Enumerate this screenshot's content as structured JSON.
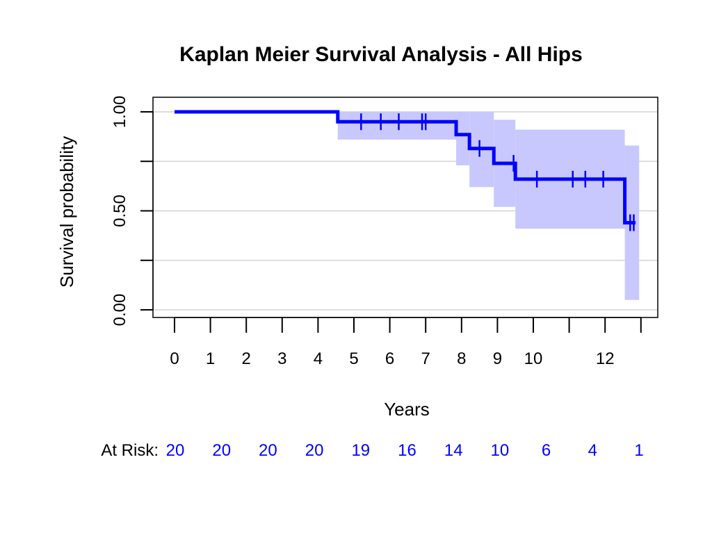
{
  "chart_data": {
    "type": "line",
    "subtype": "kaplan-meier-step",
    "title": "Kaplan Meier Survival Analysis - All Hips",
    "xlabel": "Years",
    "ylabel": "Survival probability",
    "xlim": [
      0,
      13
    ],
    "ylim": [
      0,
      1
    ],
    "x_ticks": [
      0,
      1,
      2,
      3,
      4,
      5,
      6,
      7,
      8,
      9,
      10,
      11,
      12,
      13
    ],
    "x_tick_labels": [
      "0",
      "1",
      "2",
      "3",
      "4",
      "5",
      "6",
      "7",
      "8",
      "9",
      "10",
      "",
      "12",
      ""
    ],
    "y_ticks": [
      0,
      0.25,
      0.5,
      0.75,
      1.0
    ],
    "y_tick_labels": [
      "0.00",
      "",
      "0.50",
      "",
      "1.00"
    ],
    "grid": "horizontal",
    "series": [
      {
        "color": "#0000ff",
        "steps": [
          {
            "x": 0,
            "y": 1.0
          },
          {
            "x": 4.55,
            "y": 0.95
          },
          {
            "x": 7.85,
            "y": 0.885
          },
          {
            "x": 8.22,
            "y": 0.815
          },
          {
            "x": 8.9,
            "y": 0.74
          },
          {
            "x": 9.5,
            "y": 0.66
          },
          {
            "x": 12.55,
            "y": 0.44
          }
        ],
        "end_x": 12.85,
        "censored_x": [
          5.2,
          5.75,
          6.25,
          6.9,
          7.0,
          8.5,
          9.45,
          10.1,
          11.1,
          11.45,
          11.95,
          12.7,
          12.8
        ],
        "ci": [
          {
            "x0": 4.55,
            "x1": 7.85,
            "lower": 0.86,
            "upper": 1.0
          },
          {
            "x0": 7.85,
            "x1": 8.22,
            "lower": 0.73,
            "upper": 1.0
          },
          {
            "x0": 8.22,
            "x1": 8.9,
            "lower": 0.62,
            "upper": 1.0
          },
          {
            "x0": 8.9,
            "x1": 9.5,
            "lower": 0.52,
            "upper": 0.96
          },
          {
            "x0": 9.5,
            "x1": 12.55,
            "lower": 0.41,
            "upper": 0.91
          },
          {
            "x0": 12.55,
            "x1": 12.95,
            "lower": 0.05,
            "upper": 0.83
          }
        ],
        "ci_color": "#c8c8ff"
      }
    ],
    "at_risk": {
      "label": "At Risk:",
      "values": [
        "20",
        "20",
        "20",
        "20",
        "19",
        "16",
        "14",
        "10",
        "6",
        "4",
        "1"
      ],
      "color": "#0000ff"
    }
  }
}
